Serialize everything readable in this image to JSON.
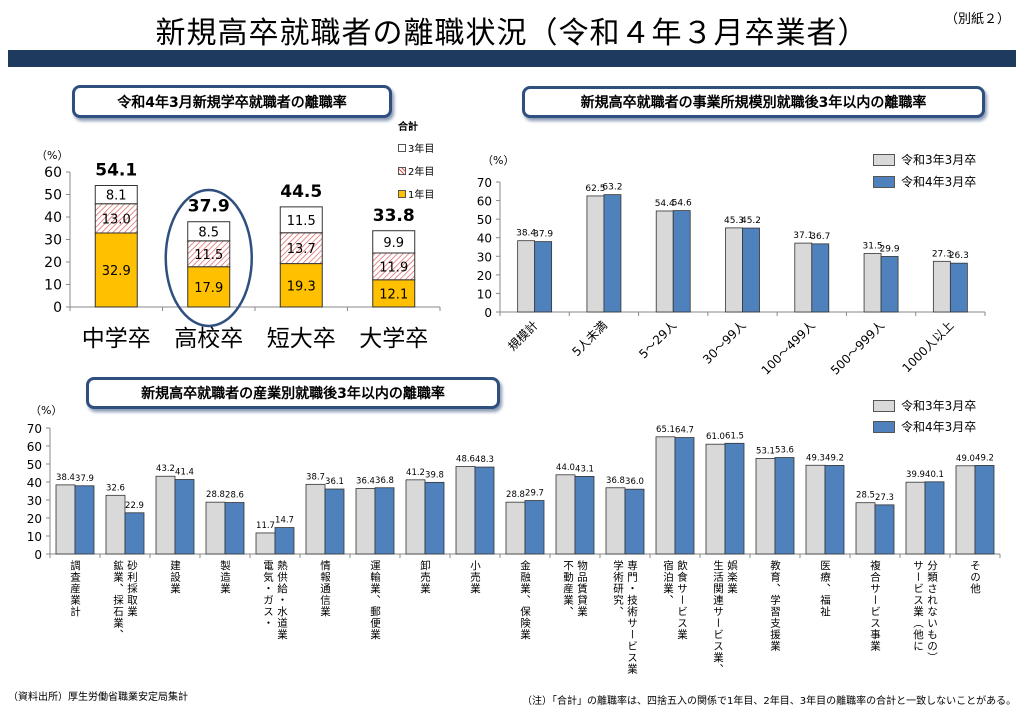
{
  "page": {
    "title": "新規高卒就職者の離職状況（令和４年３月卒業者）",
    "annex": "（別紙２）",
    "source": "（資料出所）厚生労働省職業安定局集計",
    "footnote": "（注）「合計」の離職率は、四捨五入の関係で1年目、2年目、3年目の離職率の合計と一致しないことがある。"
  },
  "colors": {
    "band": "#1f3a5f",
    "year1": "#ffc000",
    "year2_hatch": "#d9534f",
    "r3": "#d9d9d9",
    "r4": "#4f81bd"
  },
  "chart_data": [
    {
      "type": "bar",
      "stacked": true,
      "title": "令和4年3月新規学卒就職者の離職率",
      "ylabel": "（%）",
      "ylim": [
        0,
        60
      ],
      "yticks": [
        0,
        10,
        20,
        30,
        40,
        50,
        60
      ],
      "categories": [
        "中学卒",
        "高校卒",
        "短大卒",
        "大学卒"
      ],
      "legend_title": "合計",
      "series": [
        {
          "name": "1年目",
          "values": [
            32.9,
            17.9,
            19.3,
            12.1
          ]
        },
        {
          "name": "2年目",
          "values": [
            13.0,
            11.5,
            13.7,
            11.9
          ]
        },
        {
          "name": "3年目",
          "values": [
            8.1,
            8.5,
            11.5,
            9.9
          ]
        }
      ],
      "totals": [
        54.1,
        37.9,
        44.5,
        33.8
      ],
      "highlight": "高校卒"
    },
    {
      "type": "bar",
      "title": "新規高卒就職者の事業所規模別就職後3年以内の離職率",
      "ylabel": "（%）",
      "ylim": [
        0,
        70
      ],
      "yticks": [
        0,
        10,
        20,
        30,
        40,
        50,
        60,
        70
      ],
      "categories": [
        "規模計",
        "5人未満",
        "5～29人",
        "30～99人",
        "100～499人",
        "500～999人",
        "1000人以上"
      ],
      "series": [
        {
          "name": "令和3年3月卒",
          "values": [
            38.4,
            62.5,
            54.4,
            45.3,
            37.1,
            31.5,
            27.3
          ]
        },
        {
          "name": "令和4年3月卒",
          "values": [
            37.9,
            63.2,
            54.6,
            45.2,
            36.7,
            29.9,
            26.3
          ]
        }
      ]
    },
    {
      "type": "bar",
      "title": "新規高卒就職者の産業別就職後3年以内の離職率",
      "ylabel": "（%）",
      "ylim": [
        0,
        70
      ],
      "yticks": [
        0,
        10,
        20,
        30,
        40,
        50,
        60,
        70
      ],
      "categories": [
        "調査産業計",
        "鉱業、採石業、\n砂利採取業",
        "建設業",
        "製造業",
        "電気・ガス・\n熱供給・水道業",
        "情報通信業",
        "運輸業、郵便業",
        "卸売業",
        "小売業",
        "金融業、保険業",
        "不動産業、\n物品賃貸業",
        "学術研究、\n専門・技術サービス業",
        "宿泊業、\n飲食サービス業",
        "生活関連サービス業、\n娯楽業",
        "教育、学習支援業",
        "医療、福祉",
        "複合サービス事業",
        "サービス業（他に\n分類されないもの）",
        "その他"
      ],
      "series": [
        {
          "name": "令和3年3月卒",
          "values": [
            38.4,
            32.6,
            43.2,
            28.8,
            11.7,
            38.7,
            36.4,
            41.2,
            48.6,
            28.8,
            44.0,
            36.8,
            65.1,
            61.0,
            53.1,
            49.3,
            28.5,
            39.9,
            49.0
          ]
        },
        {
          "name": "令和4年3月卒",
          "values": [
            37.9,
            22.9,
            41.4,
            28.6,
            14.7,
            36.1,
            36.8,
            39.8,
            48.3,
            29.7,
            43.1,
            36.0,
            64.7,
            61.5,
            53.6,
            49.2,
            27.3,
            40.1,
            49.2
          ]
        }
      ]
    }
  ]
}
